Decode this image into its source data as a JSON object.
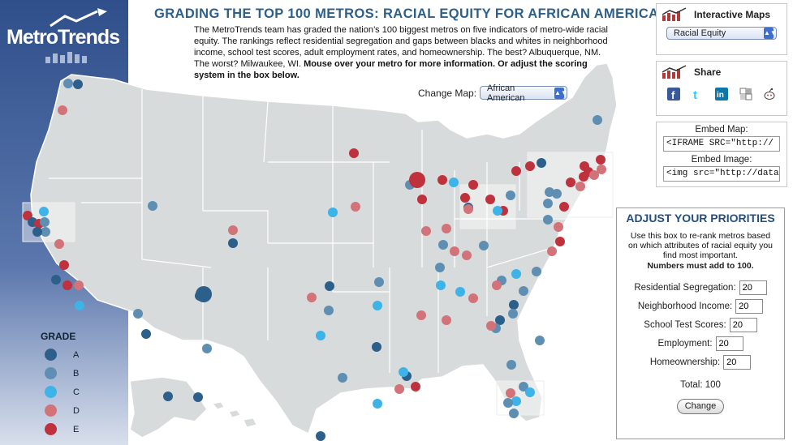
{
  "header": {
    "logo_text": "MetroTrends",
    "headline": "GRADING THE TOP 100 METROS: RACIAL EQUITY FOR AFRICAN AMERICANS",
    "intro_text": "The MetroTrends team has graded the nation’s 100 biggest metros on five indicators of metro-wide racial equity. The rankings reflect residential segregation and gaps between blacks and whites in neighborhood income, school test scores, adult employment rates, and homeownership. The best? Albuquerque, NM. The worst? Milwaukee, WI.",
    "intro_bold": "Mouse over your metro for more information. Or adjust the scoring system in the box below."
  },
  "change_map": {
    "label": "Change Map:",
    "selected": "African American"
  },
  "interactive_maps": {
    "title": "Interactive Maps",
    "selected": "Racial Equity"
  },
  "share": {
    "title": "Share",
    "icons": [
      "facebook-icon",
      "twitter-icon",
      "linkedin-icon",
      "delicious-icon",
      "reddit-icon"
    ]
  },
  "embed": {
    "map_label": "Embed Map:",
    "map_value": "<IFRAME SRC=\"http://",
    "image_label": "Embed Image:",
    "image_value": "<img src=\"http://datat"
  },
  "legend": {
    "title": "GRADE",
    "grades": [
      {
        "label": "A",
        "color": "#2c5f8a"
      },
      {
        "label": "B",
        "color": "#5e8fb2"
      },
      {
        "label": "C",
        "color": "#3db3e8"
      },
      {
        "label": "D",
        "color": "#d2737a"
      },
      {
        "label": "E",
        "color": "#c0313e"
      }
    ]
  },
  "priorities": {
    "title": "ADJUST YOUR PRIORITIES",
    "description": "Use this box to re-rank metros based on which attributes of racial equity you find most important.",
    "note": "Numbers must add to 100.",
    "rows": [
      {
        "label": "Residential Segregation:",
        "value": "20"
      },
      {
        "label": "Neighborhood Income:",
        "value": "20"
      },
      {
        "label": "School Test Scores:",
        "value": "20"
      },
      {
        "label": "Employment:",
        "value": "20"
      },
      {
        "label": "Homeownership:",
        "value": "20"
      }
    ],
    "total": "Total: 100",
    "button": "Change"
  },
  "map_colors": {
    "land": "#d8dbdb",
    "border": "#ffffff",
    "ocean": "#ffffff"
  }
}
